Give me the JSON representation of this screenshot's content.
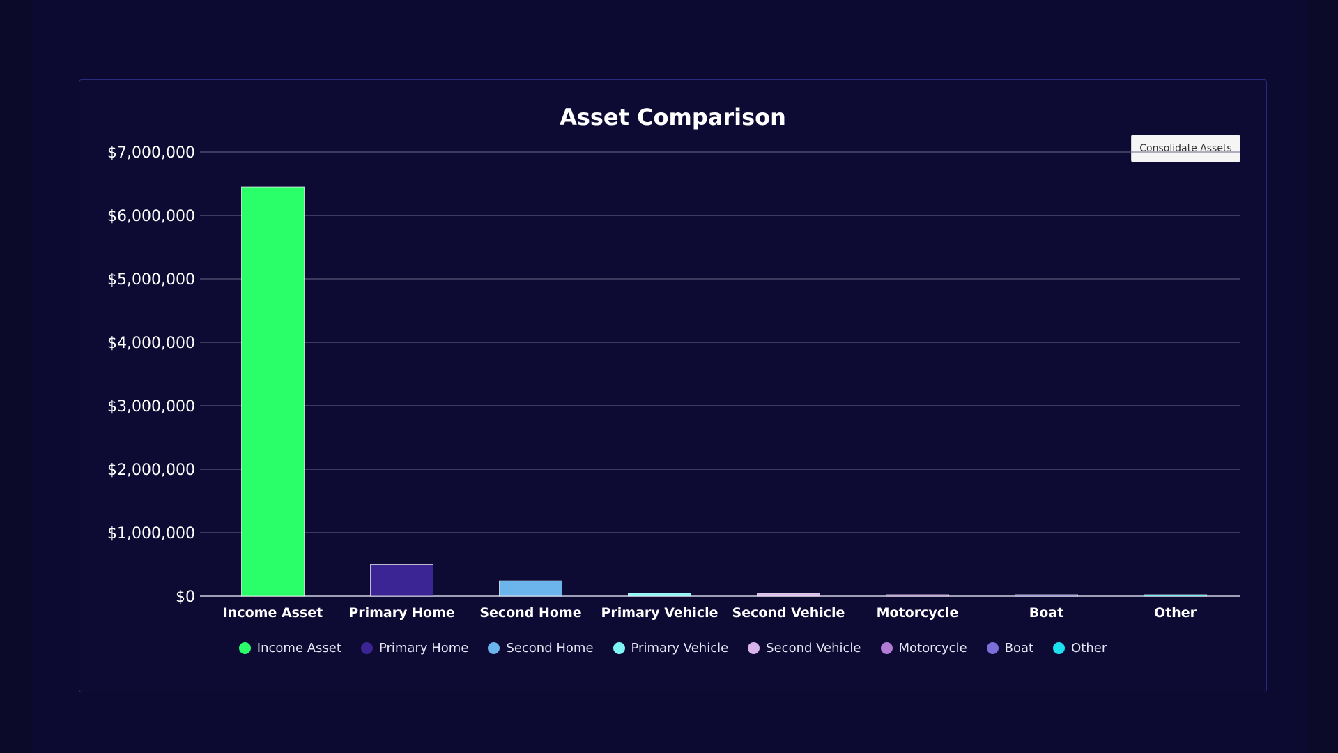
{
  "chart_data": {
    "type": "bar",
    "title": "Asset Comparison",
    "categories": [
      "Income Asset",
      "Primary Home",
      "Second Home",
      "Primary Vehicle",
      "Second Vehicle",
      "Motorcycle",
      "Boat",
      "Other"
    ],
    "values": [
      6450000,
      500000,
      240000,
      45000,
      40000,
      10000,
      10000,
      10000
    ],
    "colors": [
      "#2aff6a",
      "#3b2494",
      "#6cb4ec",
      "#7ff5f5",
      "#d9b3ec",
      "#b27bd6",
      "#7b70d9",
      "#1ee1f0"
    ],
    "ylim": [
      0,
      7000000
    ],
    "yticks": [
      0,
      1000000,
      2000000,
      3000000,
      4000000,
      5000000,
      6000000,
      7000000
    ],
    "ytick_labels": [
      "$0",
      "$1,000,000",
      "$2,000,000",
      "$3,000,000",
      "$4,000,000",
      "$5,000,000",
      "$6,000,000",
      "$7,000,000"
    ],
    "grid": true,
    "legend_position": "bottom",
    "xlabel": "",
    "ylabel": ""
  },
  "controls": {
    "consolidate_label": "Consolidate Assets"
  }
}
